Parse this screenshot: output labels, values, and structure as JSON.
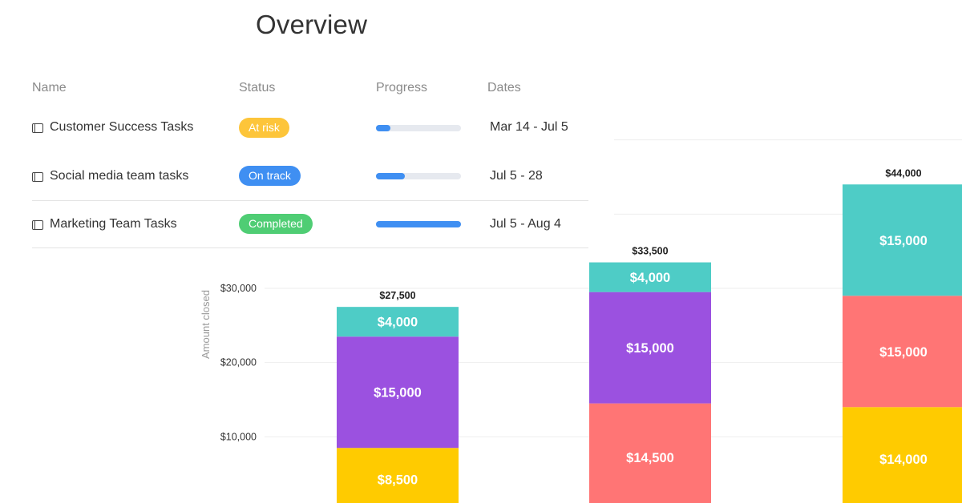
{
  "overview": {
    "title": "Overview",
    "columns": {
      "name": "Name",
      "status": "Status",
      "progress": "Progress",
      "dates": "Dates"
    },
    "rows": [
      {
        "icon": "board-icon",
        "name": "Customer Success Tasks",
        "status": "At risk",
        "status_color": "#fdc53a",
        "progress": 0.17,
        "dates": "Mar 14 - Jul 5"
      },
      {
        "icon": "board-icon",
        "name": "Social media team tasks",
        "status": "On track",
        "status_color": "#3f8ff2",
        "progress": 0.34,
        "dates": "Jul 5 - 28"
      },
      {
        "icon": "board-icon",
        "name": "Marketing Team Tasks",
        "status": "Completed",
        "status_color": "#4fcd74",
        "progress": 1.0,
        "dates": "Jul 5 - Aug 4"
      }
    ]
  },
  "chart_data": {
    "type": "bar",
    "stacked": true,
    "title": "",
    "xlabel": "",
    "ylabel": "Amount closed",
    "ylim": [
      0,
      30000
    ],
    "yticks": [
      10000,
      20000,
      30000
    ],
    "ytick_labels": [
      "$10,000",
      "$20,000",
      "$30,000"
    ],
    "grid": true,
    "categories": [
      "",
      "",
      ""
    ],
    "totals": [
      27500,
      33500,
      44000
    ],
    "total_labels": [
      "$27,500",
      "$33,500",
      "$44,000"
    ],
    "bars": [
      {
        "segments": [
          {
            "value": 8500,
            "label": "$8,500",
            "color": "#ffcb00"
          },
          {
            "value": 15000,
            "label": "$15,000",
            "color": "#9b51e0"
          },
          {
            "value": 4000,
            "label": "$4,000",
            "color": "#4eccc6"
          }
        ]
      },
      {
        "segments": [
          {
            "value": 14500,
            "label": "$14,500",
            "color": "#ff7575"
          },
          {
            "value": 15000,
            "label": "$15,000",
            "color": "#9b51e0"
          },
          {
            "value": 4000,
            "label": "$4,000",
            "color": "#4eccc6"
          }
        ]
      },
      {
        "segments": [
          {
            "value": 14000,
            "label": "$14,000",
            "color": "#ffcb00"
          },
          {
            "value": 15000,
            "label": "$15,000",
            "color": "#ff7575"
          },
          {
            "value": 15000,
            "label": "$15,000",
            "color": "#4eccc6"
          }
        ]
      }
    ],
    "colors": {
      "yellow": "#ffcb00",
      "purple": "#9b51e0",
      "teal": "#4eccc6",
      "coral": "#ff7575"
    }
  }
}
